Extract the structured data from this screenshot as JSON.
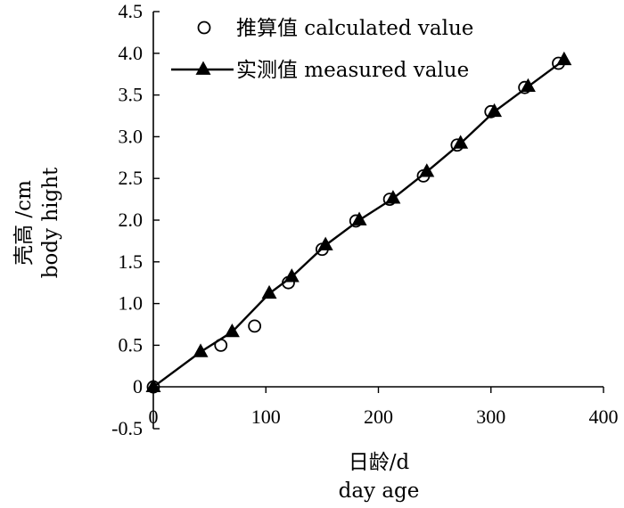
{
  "chart_data": {
    "type": "line",
    "xlabel": [
      "日龄/d",
      "day age"
    ],
    "ylabel": [
      "壳高 /cm",
      "body hight"
    ],
    "xlim": [
      0,
      400
    ],
    "ylim": [
      -0.5,
      4.5
    ],
    "x_ticks": [
      "0",
      "100",
      "200",
      "300",
      "400"
    ],
    "y_ticks": [
      "-0.5",
      "0",
      "0.5",
      "1.0",
      "1.5",
      "2.0",
      "2.5",
      "3.0",
      "3.5",
      "4.0",
      "4.5"
    ],
    "grid": false,
    "legend_position": "top-left",
    "series": [
      {
        "name": "推算值 calculated value",
        "marker": "circle-open",
        "line": false,
        "x": [
          0,
          60,
          90,
          120,
          150,
          180,
          210,
          240,
          270,
          300,
          330,
          360
        ],
        "y": [
          0,
          0.5,
          0.73,
          1.25,
          1.65,
          1.99,
          2.25,
          2.53,
          2.9,
          3.3,
          3.59,
          3.88
        ]
      },
      {
        "name": "实测值 measured value",
        "marker": "triangle-filled",
        "line": true,
        "x": [
          0,
          42,
          70,
          103,
          123,
          153,
          183,
          213,
          243,
          273,
          303,
          333,
          365
        ],
        "y": [
          0,
          0.42,
          0.66,
          1.12,
          1.32,
          1.7,
          2.0,
          2.26,
          2.58,
          2.92,
          3.3,
          3.6,
          3.92
        ]
      }
    ]
  }
}
